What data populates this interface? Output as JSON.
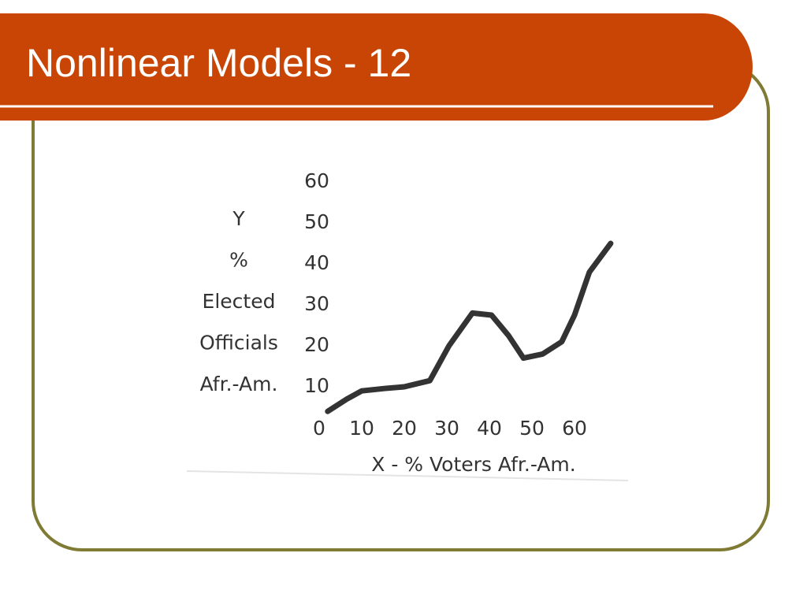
{
  "chart_data": {
    "type": "line",
    "title": "Nonlinear Models - 12",
    "ylabel": [
      "Y",
      "%",
      "Elected",
      "Officials",
      "Afr.-Am."
    ],
    "xlabel": "X - % Voters Afr.-Am.",
    "x": [
      2,
      6.5,
      10,
      15.5,
      20,
      26,
      30.5,
      36,
      40.5,
      44.5,
      48,
      52.5,
      57,
      60,
      63.5,
      68.5
    ],
    "series": [
      {
        "color": "#333333",
        "values": [
          4,
          7,
          9,
          9.6,
          10,
          11.5,
          20,
          28,
          27.5,
          22.5,
          17,
          18,
          21,
          27.5,
          38,
          45
        ]
      }
    ],
    "xlim": [
      0,
      70
    ],
    "ylim": [
      0,
      60
    ],
    "xticks": [
      0,
      10,
      20,
      30,
      40,
      50,
      60
    ],
    "yticks": [
      10,
      20,
      30,
      40,
      50,
      60
    ],
    "grid": false
  }
}
